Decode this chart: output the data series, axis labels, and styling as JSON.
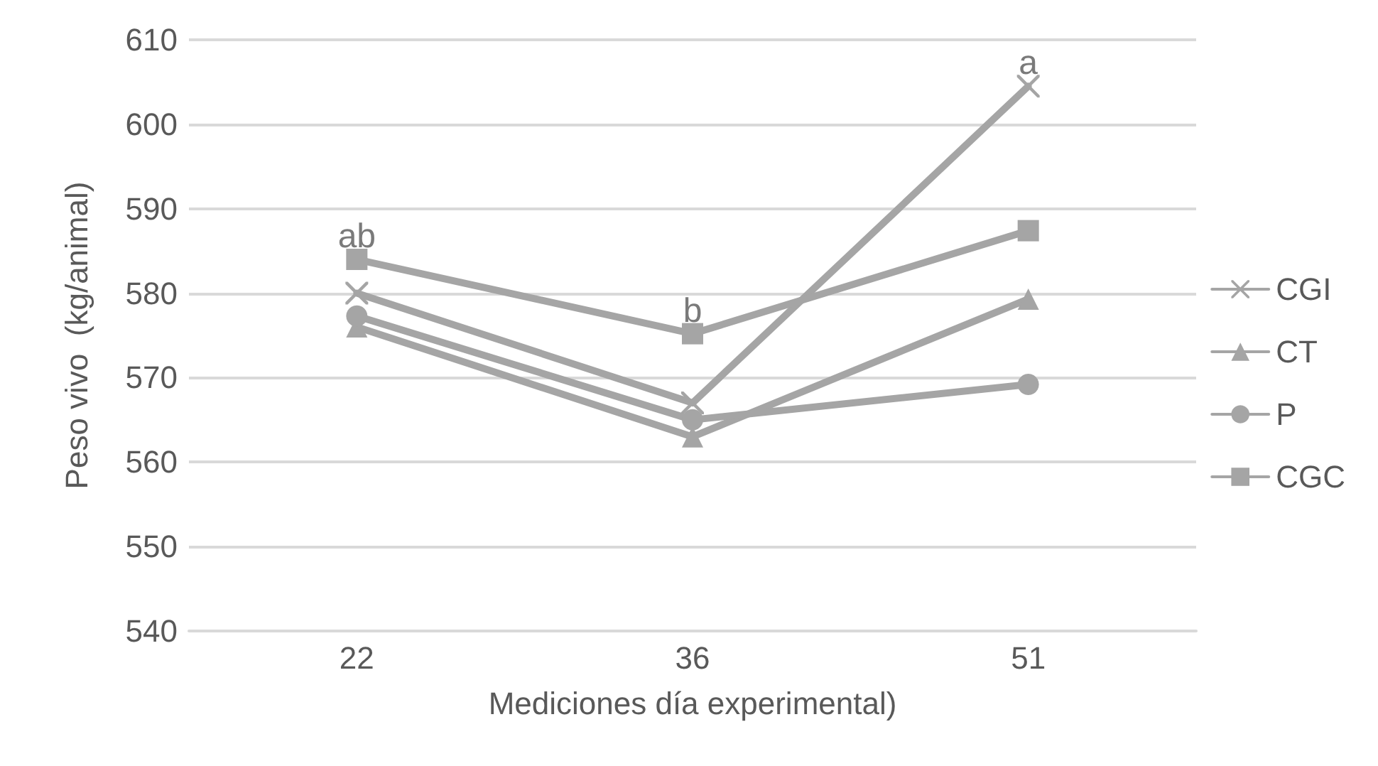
{
  "chart_data": {
    "type": "line",
    "xlabel": "Mediciones día experimental)",
    "ylabel": "Peso vivo  (kg/animal)",
    "categories": [
      "22",
      "36",
      "51"
    ],
    "series": [
      {
        "name": "CGI",
        "color": "#a5a5a5",
        "marker": "cross",
        "values": [
          580,
          567,
          604.5
        ]
      },
      {
        "name": "CT",
        "color": "#a5a5a5",
        "marker": "triangle",
        "values": [
          576,
          563,
          579.3
        ]
      },
      {
        "name": "P",
        "color": "#a5a5a5",
        "marker": "circle",
        "values": [
          577.3,
          565,
          569.2
        ]
      },
      {
        "name": "CGC",
        "color": "#a5a5a5",
        "marker": "square",
        "values": [
          584,
          575.2,
          587.4
        ]
      }
    ],
    "ylim": [
      540,
      610
    ],
    "yticks": [
      540,
      550,
      560,
      570,
      580,
      590,
      600,
      610
    ],
    "grid": "y",
    "legend": "right",
    "annotations": [
      {
        "text": "ab",
        "x": "22",
        "y": 584
      },
      {
        "text": "b",
        "x": "36",
        "y": 575.2
      },
      {
        "text": "a",
        "x": "51",
        "y": 604.5
      }
    ]
  }
}
